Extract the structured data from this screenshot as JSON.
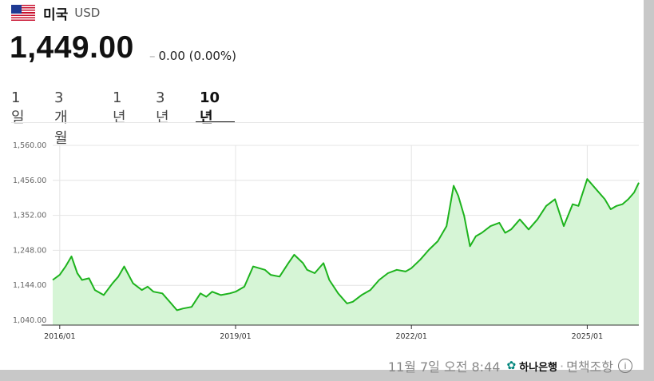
{
  "header": {
    "country": "미국",
    "currency": "USD",
    "flag_icon": "us-flag-icon"
  },
  "price": {
    "value": "1,449.00",
    "change": "0.00 (0.00%)"
  },
  "tabs": [
    {
      "label": "1일",
      "active": false
    },
    {
      "label": "3개월",
      "active": false
    },
    {
      "label": "1년",
      "active": false
    },
    {
      "label": "3년",
      "active": false
    },
    {
      "label": "10년",
      "active": true
    }
  ],
  "footer": {
    "timestamp": "11월 7일 오전 8:44",
    "bank": "하나은행",
    "disclaimer": "면책조항",
    "info_icon": "info-icon"
  },
  "colors": {
    "line": "#1db31d",
    "fill": "#d6f5d6"
  },
  "chart_data": {
    "type": "area",
    "ylim": [
      1040,
      1560
    ],
    "y_ticks": [
      "1,560.00",
      "1,456.00",
      "1,352.00",
      "1,248.00",
      "1,144.00",
      "1,040.00"
    ],
    "y_tick_values": [
      1560,
      1456,
      1352,
      1248,
      1144,
      1040
    ],
    "x_ticks": [
      "2016/01",
      "2019/01",
      "2022/01",
      "2025/01"
    ],
    "x_tick_values": [
      2016,
      2019,
      2022,
      2025
    ],
    "xlim": [
      2015.88,
      2025.88
    ],
    "series": [
      {
        "x": [
          2015.88,
          2016.0,
          2016.1,
          2016.2,
          2016.3,
          2016.38,
          2016.5,
          2016.6,
          2016.75,
          2016.9,
          2017.0,
          2017.1,
          2017.25,
          2017.4,
          2017.5,
          2017.6,
          2017.75,
          2017.9,
          2018.0,
          2018.1,
          2018.25,
          2018.4,
          2018.5,
          2018.6,
          2018.75,
          2018.9,
          2019.0,
          2019.15,
          2019.3,
          2019.5,
          2019.6,
          2019.75,
          2019.9,
          2020.0,
          2020.15,
          2020.22,
          2020.35,
          2020.5,
          2020.6,
          2020.75,
          2020.9,
          2021.0,
          2021.15,
          2021.3,
          2021.45,
          2021.6,
          2021.75,
          2021.9,
          2022.0,
          2022.15,
          2022.3,
          2022.45,
          2022.6,
          2022.72,
          2022.8,
          2022.9,
          2023.0,
          2023.1,
          2023.2,
          2023.35,
          2023.5,
          2023.6,
          2023.7,
          2023.85,
          2024.0,
          2024.15,
          2024.3,
          2024.45,
          2024.6,
          2024.75,
          2024.85,
          2025.0,
          2025.15,
          2025.3,
          2025.4,
          2025.5,
          2025.6,
          2025.7,
          2025.8,
          2025.88
        ],
        "y": [
          1160,
          1175,
          1200,
          1230,
          1180,
          1160,
          1165,
          1130,
          1115,
          1150,
          1170,
          1200,
          1150,
          1130,
          1140,
          1125,
          1120,
          1090,
          1070,
          1075,
          1080,
          1120,
          1110,
          1125,
          1115,
          1120,
          1125,
          1140,
          1200,
          1190,
          1175,
          1170,
          1210,
          1235,
          1210,
          1190,
          1180,
          1210,
          1160,
          1120,
          1090,
          1095,
          1115,
          1130,
          1160,
          1180,
          1190,
          1185,
          1195,
          1220,
          1250,
          1275,
          1320,
          1440,
          1410,
          1350,
          1260,
          1290,
          1300,
          1320,
          1330,
          1300,
          1310,
          1340,
          1310,
          1340,
          1380,
          1400,
          1320,
          1385,
          1380,
          1460,
          1430,
          1400,
          1370,
          1380,
          1385,
          1400,
          1420,
          1449
        ]
      }
    ]
  }
}
